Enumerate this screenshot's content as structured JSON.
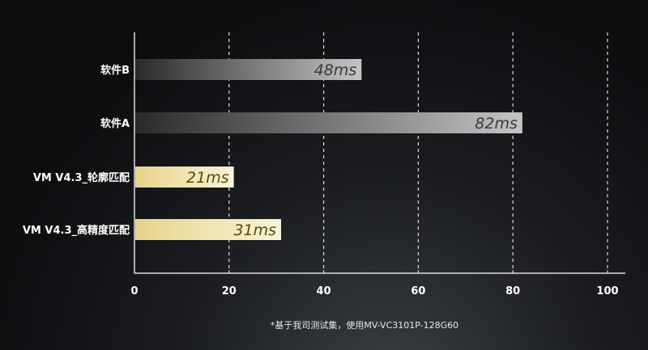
{
  "chart_data": {
    "type": "bar",
    "orientation": "horizontal",
    "categories": [
      "软件B",
      "软件A",
      "VM V4.3_轮廓匹配",
      "VM V4.3_高精度匹配"
    ],
    "values": [
      48,
      82,
      21,
      31
    ],
    "data_labels": [
      "48ms",
      "82ms",
      "21ms",
      "31ms"
    ],
    "xlim": [
      0,
      100
    ],
    "xticks": [
      "0",
      "20",
      "40",
      "60",
      "80",
      "100"
    ],
    "grid": "vertical dashed",
    "colors": {
      "competitor": "#b0b0b0",
      "vm": "#f3e9b8"
    }
  },
  "footnote": "*基于我司测试集，使用MV-VC3101P-128G60"
}
